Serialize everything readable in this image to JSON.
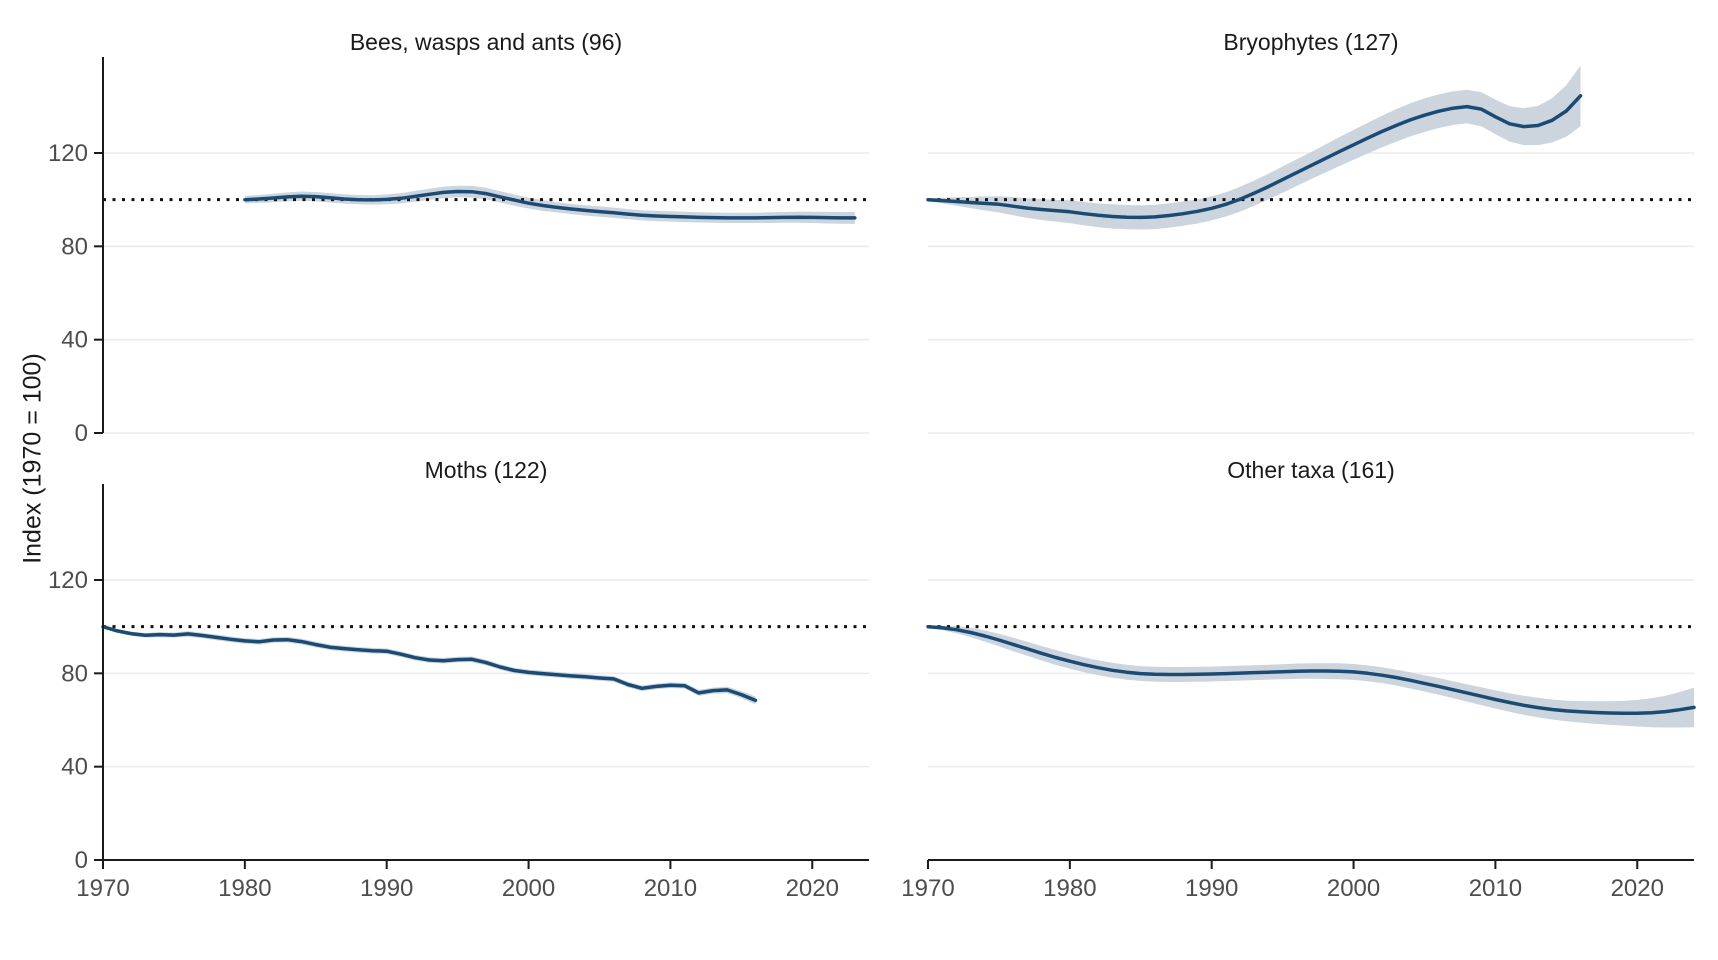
{
  "axes": {
    "y_label": "Index (1970 = 100)",
    "x_ticks": [
      1970,
      1980,
      1990,
      2000,
      2010,
      2020
    ],
    "y_ticks": [
      0,
      40,
      80,
      120
    ],
    "xlim": [
      1970,
      2024
    ],
    "ylim": [
      0,
      161
    ],
    "reference_line": 100,
    "grid": "horizontal-only",
    "legend": "none"
  },
  "colors": {
    "line": "#1b4a73",
    "band": "#ccd5de",
    "grid": "#ececec",
    "axis": "#1a1a1a",
    "tick_label": "#4d4d4d",
    "title": "#1a1a1a",
    "reference": "#111111",
    "background": "#ffffff"
  },
  "chart_data": [
    {
      "type": "line",
      "title": "Bees, wasps and ants (96)",
      "xlabel": "",
      "ylabel": "Index (1970 = 100)",
      "band": "confidence interval",
      "years": [
        1980,
        1981,
        1982,
        1983,
        1984,
        1985,
        1986,
        1987,
        1988,
        1989,
        1990,
        1991,
        1992,
        1993,
        1994,
        1995,
        1996,
        1997,
        1998,
        1999,
        2000,
        2001,
        2002,
        2003,
        2004,
        2005,
        2006,
        2007,
        2008,
        2009,
        2010,
        2011,
        2012,
        2013,
        2014,
        2015,
        2016,
        2017,
        2018,
        2019,
        2020,
        2021,
        2022,
        2023
      ],
      "values": [
        100.0,
        100.3,
        100.7,
        101.2,
        101.5,
        101.3,
        100.8,
        100.3,
        100.0,
        99.9,
        100.1,
        100.6,
        101.4,
        102.3,
        103.1,
        103.5,
        103.4,
        102.6,
        101.2,
        99.8,
        98.5,
        97.5,
        96.7,
        96.0,
        95.4,
        94.9,
        94.4,
        93.8,
        93.3,
        93.0,
        92.8,
        92.6,
        92.4,
        92.3,
        92.2,
        92.2,
        92.2,
        92.3,
        92.4,
        92.5,
        92.4,
        92.3,
        92.2,
        92.2
      ],
      "band_halfwidth": [
        1.6,
        1.7,
        1.8,
        1.9,
        2.0,
        2.0,
        2.0,
        2.0,
        2.0,
        2.0,
        2.1,
        2.2,
        2.3,
        2.4,
        2.5,
        2.5,
        2.5,
        2.5,
        2.4,
        2.4,
        2.3,
        2.3,
        2.2,
        2.2,
        2.2,
        2.2,
        2.2,
        2.2,
        2.2,
        2.2,
        2.2,
        2.2,
        2.2,
        2.2,
        2.2,
        2.2,
        2.2,
        2.3,
        2.3,
        2.4,
        2.4,
        2.5,
        2.5,
        2.6
      ]
    },
    {
      "type": "line",
      "title": "Bryophytes (127)",
      "xlabel": "",
      "ylabel": "Index (1970 = 100)",
      "band": "confidence interval",
      "years": [
        1970,
        1971,
        1972,
        1973,
        1974,
        1975,
        1976,
        1977,
        1978,
        1979,
        1980,
        1981,
        1982,
        1983,
        1984,
        1985,
        1986,
        1987,
        1988,
        1989,
        1990,
        1991,
        1992,
        1993,
        1994,
        1995,
        1996,
        1997,
        1998,
        1999,
        2000,
        2001,
        2002,
        2003,
        2004,
        2005,
        2006,
        2007,
        2008,
        2009,
        2010,
        2011,
        2012,
        2013,
        2014,
        2015,
        2016
      ],
      "values": [
        100.0,
        99.6,
        99.2,
        98.8,
        98.4,
        98.0,
        97.2,
        96.4,
        95.8,
        95.3,
        94.8,
        94.0,
        93.3,
        92.8,
        92.5,
        92.4,
        92.6,
        93.2,
        94.0,
        95.0,
        96.3,
        98.0,
        100.2,
        102.8,
        105.6,
        108.6,
        111.6,
        114.6,
        117.6,
        120.6,
        123.5,
        126.4,
        129.2,
        131.8,
        134.2,
        136.2,
        137.9,
        139.2,
        139.9,
        138.8,
        135.5,
        132.5,
        131.3,
        131.8,
        134.0,
        138.0,
        144.5
      ],
      "band_halfwidth": [
        0.6,
        1.2,
        1.8,
        2.4,
        3.0,
        3.5,
        3.9,
        4.2,
        4.5,
        4.7,
        4.9,
        5.0,
        5.1,
        5.2,
        5.2,
        5.2,
        5.2,
        5.2,
        5.2,
        5.2,
        5.2,
        5.2,
        5.3,
        5.4,
        5.5,
        5.6,
        5.7,
        5.8,
        6.0,
        6.2,
        6.4,
        6.6,
        6.8,
        7.0,
        7.1,
        7.2,
        7.2,
        7.2,
        7.2,
        7.3,
        7.4,
        7.6,
        7.9,
        8.4,
        9.5,
        11.0,
        13.0
      ]
    },
    {
      "type": "line",
      "title": "Moths (122)",
      "xlabel": "",
      "ylabel": "Index (1970 = 100)",
      "band": "confidence interval",
      "years": [
        1970,
        1971,
        1972,
        1973,
        1974,
        1975,
        1976,
        1977,
        1978,
        1979,
        1980,
        1981,
        1982,
        1983,
        1984,
        1985,
        1986,
        1987,
        1988,
        1989,
        1990,
        1991,
        1992,
        1993,
        1994,
        1995,
        1996,
        1997,
        1998,
        1999,
        2000,
        2001,
        2002,
        2003,
        2004,
        2005,
        2006,
        2007,
        2008,
        2009,
        2010,
        2011,
        2012,
        2013,
        2014,
        2015,
        2016
      ],
      "values": [
        100.0,
        98.2,
        97.0,
        96.3,
        96.6,
        96.4,
        96.9,
        96.2,
        95.4,
        94.6,
        93.9,
        93.5,
        94.3,
        94.4,
        93.6,
        92.3,
        91.2,
        90.6,
        90.1,
        89.7,
        89.5,
        88.2,
        86.7,
        85.7,
        85.4,
        85.9,
        86.0,
        84.6,
        82.7,
        81.2,
        80.4,
        79.9,
        79.4,
        78.9,
        78.5,
        78.0,
        77.6,
        75.2,
        73.6,
        74.4,
        74.9,
        74.7,
        71.6,
        72.6,
        72.9,
        70.9,
        68.4
      ],
      "band_halfwidth": [
        0.4,
        0.7,
        0.9,
        1.0,
        1.1,
        1.1,
        1.2,
        1.2,
        1.2,
        1.2,
        1.2,
        1.2,
        1.2,
        1.2,
        1.2,
        1.2,
        1.2,
        1.2,
        1.2,
        1.2,
        1.2,
        1.2,
        1.2,
        1.2,
        1.2,
        1.2,
        1.2,
        1.2,
        1.2,
        1.2,
        1.2,
        1.2,
        1.2,
        1.2,
        1.2,
        1.2,
        1.2,
        1.2,
        1.2,
        1.2,
        1.2,
        1.2,
        1.3,
        1.3,
        1.4,
        1.5,
        1.7
      ]
    },
    {
      "type": "line",
      "title": "Other taxa (161)",
      "xlabel": "",
      "ylabel": "Index (1970 = 100)",
      "band": "confidence interval",
      "years": [
        1970,
        1971,
        1972,
        1973,
        1974,
        1975,
        1976,
        1977,
        1978,
        1979,
        1980,
        1981,
        1982,
        1983,
        1984,
        1985,
        1986,
        1987,
        1988,
        1989,
        1990,
        1991,
        1992,
        1993,
        1994,
        1995,
        1996,
        1997,
        1998,
        1999,
        2000,
        2001,
        2002,
        2003,
        2004,
        2005,
        2006,
        2007,
        2008,
        2009,
        2010,
        2011,
        2012,
        2013,
        2014,
        2015,
        2016,
        2017,
        2018,
        2019,
        2020,
        2021,
        2022,
        2023,
        2024
      ],
      "values": [
        100.0,
        99.5,
        98.7,
        97.5,
        96.0,
        94.3,
        92.4,
        90.5,
        88.6,
        86.8,
        85.2,
        83.7,
        82.4,
        81.3,
        80.5,
        79.9,
        79.6,
        79.5,
        79.5,
        79.6,
        79.7,
        79.9,
        80.1,
        80.3,
        80.5,
        80.7,
        80.9,
        81.0,
        81.0,
        80.9,
        80.6,
        80.0,
        79.2,
        78.2,
        77.0,
        75.7,
        74.4,
        73.0,
        71.6,
        70.2,
        68.8,
        67.5,
        66.3,
        65.3,
        64.5,
        63.9,
        63.5,
        63.2,
        63.0,
        62.9,
        62.9,
        63.1,
        63.6,
        64.4,
        65.4
      ],
      "band_halfwidth": [
        0.5,
        1.0,
        1.5,
        2.0,
        2.4,
        2.7,
        2.9,
        3.0,
        3.1,
        3.2,
        3.2,
        3.2,
        3.2,
        3.2,
        3.2,
        3.2,
        3.2,
        3.2,
        3.2,
        3.2,
        3.2,
        3.2,
        3.2,
        3.2,
        3.2,
        3.2,
        3.3,
        3.3,
        3.4,
        3.4,
        3.4,
        3.4,
        3.4,
        3.4,
        3.5,
        3.5,
        3.6,
        3.6,
        3.7,
        3.8,
        3.9,
        4.0,
        4.1,
        4.2,
        4.3,
        4.4,
        4.6,
        4.8,
        5.0,
        5.3,
        5.7,
        6.2,
        6.8,
        7.6,
        8.5
      ]
    }
  ]
}
